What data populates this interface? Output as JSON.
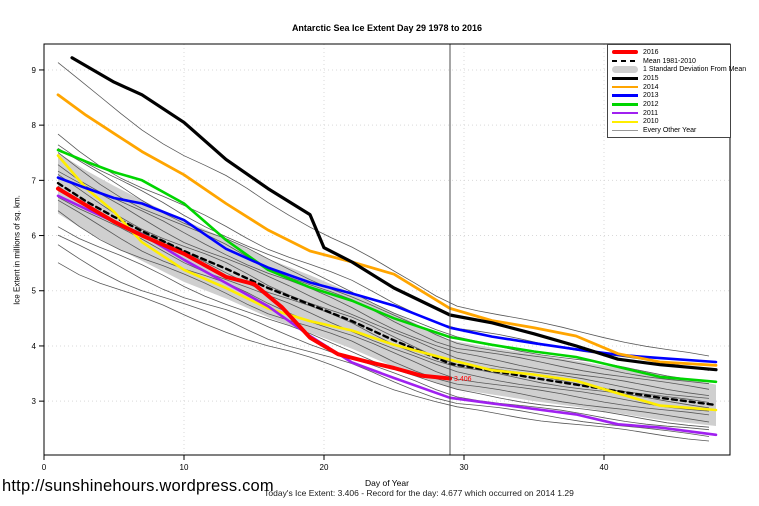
{
  "title": "Antarctic Sea Ice Extent Day 29 1978 to 2016",
  "ylabel": "Ice Extent in millions of sq. km.",
  "xlabel": "Day of Year",
  "footnote": "Today's Ice Extent: 3.406  - Record for the day: 4.677 which occurred on 2014 1.29",
  "url_caption": "http://sunshinehours.wordpress.com",
  "chart_data": {
    "type": "line",
    "title": "Antarctic Sea Ice Extent Day 29 1978 to 2016",
    "xlabel": "Day of Year",
    "ylabel": "Ice Extent in millions of sq. km.",
    "xlim": [
      0,
      49
    ],
    "ylim": [
      2.0,
      9.5
    ],
    "x_ticks": [
      0,
      10,
      20,
      30,
      40
    ],
    "y_ticks": [
      3,
      4,
      5,
      6,
      7,
      8,
      9
    ],
    "grid": "dotted",
    "grid_color": "#d9d9d9",
    "legend_position": "top-right",
    "reference_line": {
      "day": 29,
      "color": "#4d4d4d"
    },
    "end_point_label": {
      "text": "3.406",
      "day": 29,
      "value": 3.41,
      "color": "#ff0000"
    },
    "sample_days": [
      1,
      3,
      5,
      7,
      10,
      13,
      16,
      19,
      22,
      25,
      29,
      32,
      35,
      38,
      41,
      44,
      48
    ],
    "band": {
      "label": "1 Standard Deviation From Mean",
      "color": "#cfcfcf",
      "upper": [
        7.5,
        7.18,
        6.9,
        6.64,
        6.28,
        5.94,
        5.58,
        5.28,
        4.96,
        4.6,
        4.1,
        3.97,
        3.85,
        3.73,
        3.6,
        3.48,
        3.3
      ],
      "lower": [
        6.4,
        6.08,
        5.8,
        5.54,
        5.16,
        4.86,
        4.52,
        4.24,
        3.95,
        3.62,
        3.24,
        3.12,
        3.0,
        2.9,
        2.78,
        2.66,
        2.55
      ]
    },
    "series": [
      {
        "name": "Mean 1981-2010",
        "color": "#000000",
        "width": 2.4,
        "dash": "5,4",
        "values": [
          6.95,
          6.62,
          6.34,
          6.08,
          5.72,
          5.4,
          5.05,
          4.75,
          4.45,
          4.1,
          3.68,
          3.55,
          3.42,
          3.3,
          3.18,
          3.06,
          2.93
        ]
      },
      {
        "name": "2010",
        "color": "#ffee00",
        "width": 2.6,
        "values": [
          7.45,
          6.86,
          6.43,
          5.88,
          5.38,
          5.05,
          4.68,
          4.45,
          4.28,
          4.02,
          3.75,
          3.56,
          3.48,
          3.37,
          3.14,
          2.92,
          2.84
        ]
      },
      {
        "name": "2011",
        "color": "#a020f0",
        "width": 2.6,
        "values": [
          6.72,
          6.48,
          6.25,
          6.02,
          5.56,
          5.14,
          4.72,
          4.18,
          3.7,
          3.42,
          3.06,
          2.96,
          2.86,
          2.76,
          2.58,
          2.52,
          2.39
        ]
      },
      {
        "name": "2012",
        "color": "#00d500",
        "width": 2.6,
        "values": [
          7.55,
          7.34,
          7.15,
          7.0,
          6.58,
          5.92,
          5.38,
          5.06,
          4.82,
          4.5,
          4.16,
          4.02,
          3.9,
          3.8,
          3.62,
          3.44,
          3.35
        ]
      },
      {
        "name": "2013",
        "color": "#0000ff",
        "width": 2.6,
        "values": [
          7.05,
          6.86,
          6.68,
          6.58,
          6.28,
          5.76,
          5.42,
          5.15,
          4.95,
          4.73,
          4.33,
          4.17,
          4.05,
          3.94,
          3.84,
          3.78,
          3.71
        ]
      },
      {
        "name": "2014",
        "color": "#ffa500",
        "width": 2.8,
        "values": [
          8.55,
          8.18,
          7.85,
          7.52,
          7.1,
          6.58,
          6.1,
          5.72,
          5.52,
          5.3,
          4.68,
          4.46,
          4.33,
          4.18,
          3.86,
          3.71,
          3.65
        ]
      },
      {
        "name": "2015",
        "color": "#000000",
        "width": 3.2,
        "days": [
          2,
          5,
          7,
          10,
          13,
          16,
          19,
          20,
          22,
          25,
          29,
          32,
          35,
          38,
          41,
          44,
          48
        ],
        "values": [
          9.22,
          8.78,
          8.55,
          8.05,
          7.38,
          6.85,
          6.38,
          5.78,
          5.52,
          5.05,
          4.56,
          4.42,
          4.22,
          4.0,
          3.76,
          3.66,
          3.57
        ]
      },
      {
        "name": "2016",
        "color": "#ff0000",
        "width": 4,
        "days": [
          1,
          3,
          5,
          7,
          10,
          13,
          15,
          17,
          19,
          21,
          23,
          25,
          27,
          29
        ],
        "values": [
          6.85,
          6.55,
          6.25,
          6.0,
          5.67,
          5.25,
          5.12,
          4.7,
          4.15,
          3.85,
          3.72,
          3.6,
          3.46,
          3.41
        ]
      }
    ],
    "every_other_year": {
      "label": "Every Other Year",
      "color": "#585858",
      "width": 0.8,
      "lines": [
        {
          "start": 9.1,
          "end": 3.78
        },
        {
          "start": 7.8,
          "end": 3.55
        },
        {
          "start": 7.7,
          "end": 3.35
        },
        {
          "start": 7.58,
          "end": 3.28
        },
        {
          "start": 7.45,
          "end": 3.2
        },
        {
          "start": 7.32,
          "end": 3.1
        },
        {
          "start": 7.2,
          "end": 3.02
        },
        {
          "start": 7.05,
          "end": 2.95
        },
        {
          "start": 6.9,
          "end": 2.88
        },
        {
          "start": 6.75,
          "end": 2.8
        },
        {
          "start": 6.6,
          "end": 2.72
        },
        {
          "start": 6.42,
          "end": 2.62
        },
        {
          "start": 6.22,
          "end": 2.52
        },
        {
          "start": 6.0,
          "end": 2.45
        },
        {
          "start": 5.78,
          "end": 2.35
        },
        {
          "start": 5.55,
          "end": 2.28
        }
      ]
    },
    "legend": [
      {
        "label": "2016",
        "color": "#ff0000",
        "style": "thick"
      },
      {
        "label": "Mean 1981-2010",
        "color": "#000000",
        "style": "dashed"
      },
      {
        "label": "1 Standard Deviation From Mean",
        "color": "#cfcfcf",
        "style": "patch"
      },
      {
        "label": "2015",
        "color": "#000000",
        "style": "medium"
      },
      {
        "label": "2014",
        "color": "#ffa500",
        "style": "medium"
      },
      {
        "label": "2013",
        "color": "#0000ff",
        "style": "medium"
      },
      {
        "label": "2012",
        "color": "#00d500",
        "style": "medium"
      },
      {
        "label": "2011",
        "color": "#a020f0",
        "style": "medium"
      },
      {
        "label": "2010",
        "color": "#ffee00",
        "style": "medium"
      },
      {
        "label": "Every Other Year",
        "color": "#999999",
        "style": "thin"
      }
    ]
  }
}
